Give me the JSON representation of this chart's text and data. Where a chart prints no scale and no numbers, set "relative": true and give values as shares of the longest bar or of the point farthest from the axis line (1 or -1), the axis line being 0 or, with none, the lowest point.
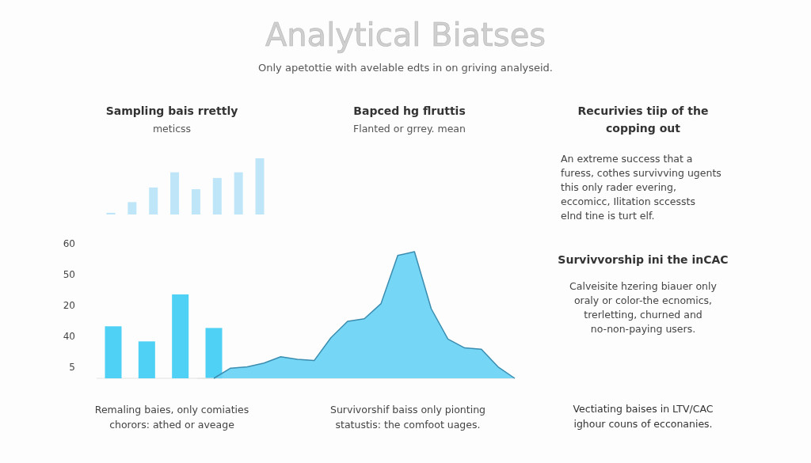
{
  "chart_data": [
    {
      "type": "other",
      "title": "Analytical Biatses",
      "subtitle": "Only apetottie with avelable edts in on griving analyseid.",
      "annotations": [
        "Bapced hg flruttis",
        "Flanted or grrey. mean"
      ]
    },
    {
      "type": "bar",
      "title": "Sampling bais rrettly",
      "subtitle": "meticss",
      "relative": true,
      "categories": [
        null,
        null,
        null,
        null,
        null,
        null,
        null,
        null
      ],
      "values": [
        0.03,
        0.22,
        0.48,
        0.75,
        0.45,
        0.65,
        0.75,
        1
      ],
      "color": "#bfe6f8",
      "annotations": [
        "Remaling baies, only comiaties chorors: athed or aveage"
      ]
    },
    {
      "type": "bar",
      "relative": true,
      "categories": [
        null,
        null,
        null,
        null
      ],
      "values": [
        0.62,
        0.44,
        1,
        0.6
      ],
      "color": "#4fd1f6",
      "annotations": [
        "60",
        "50",
        "20",
        "40",
        "5"
      ]
    },
    {
      "type": "area",
      "relative": true,
      "categories": [
        null,
        null,
        null,
        null,
        null,
        null,
        null,
        null,
        null,
        null,
        null,
        null,
        null,
        null,
        null,
        null,
        null,
        null,
        null
      ],
      "values": [
        0,
        0.08,
        0.09,
        0.12,
        0.17,
        0.15,
        0.14,
        0.32,
        0.45,
        0.47,
        0.59,
        0.97,
        1,
        0.55,
        0.31,
        0.24,
        0.23,
        0.09,
        0
      ],
      "color": "#66d2f5",
      "annotations": [
        "Survivorshif baiss only pionting statustis: the comfoot uages."
      ]
    },
    {
      "type": "other",
      "title": "Recurivies tiip of the copping out",
      "annotations": [
        "An extreme success that a furess, cothes survivving ugents this only rader evering, eccomicc, Ilitation sccessts elnd tine is turt elf.",
        "Survivvorship ini the inCAC",
        "Calveisite hzering biauer only oraly or color-the ecnomics, trerletting, churned and no-non-paying users.",
        "Vectiating baises in LTV/CAC ighour couns of ecconanies."
      ]
    }
  ]
}
